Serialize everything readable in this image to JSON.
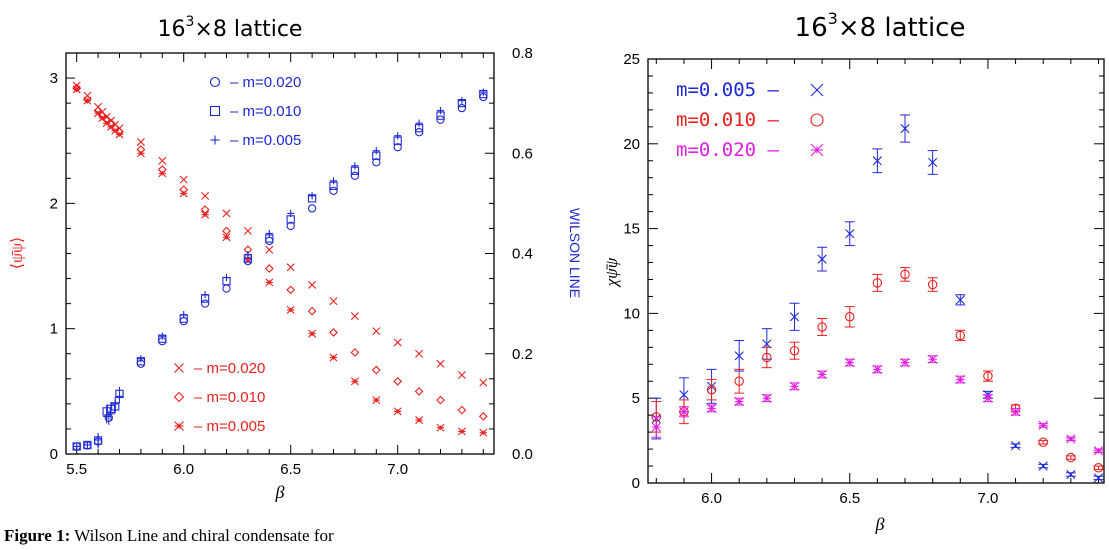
{
  "caption": {
    "label": "Figure 1:",
    "text": "Wilson Line and chiral condensate for"
  },
  "colors": {
    "red": "#e8211f",
    "blue": "#1f2ad4",
    "magenta": "#e020e0"
  },
  "chart_data": [
    {
      "type": "scatter",
      "title_base": "16",
      "title_exp": "3",
      "title_rest": "×8 lattice",
      "xlabel": "β",
      "ylabel_left": "⟨ψ̄ψ⟩",
      "ylabel_right": "WILSON LINE",
      "xlim": [
        5.45,
        7.45
      ],
      "ylim_left": [
        0,
        3.2
      ],
      "ylim_right": [
        0,
        0.8
      ],
      "xticks": [
        "5.5",
        "6.0",
        "6.5",
        "7.0"
      ],
      "yticks_left": [
        "0",
        "1",
        "2",
        "3"
      ],
      "yticks_right": [
        "0.0",
        "0.2",
        "0.4",
        "0.6",
        "0.8"
      ],
      "legend_wilson": [
        {
          "marker": "circle",
          "label": "– m=0.020"
        },
        {
          "marker": "square",
          "label": "– m=0.010"
        },
        {
          "marker": "plus",
          "label": "– m=0.005"
        }
      ],
      "legend_condensate": [
        {
          "marker": "cross",
          "label": "– m=0.020"
        },
        {
          "marker": "diamond",
          "label": "– m=0.010"
        },
        {
          "marker": "burst",
          "label": "– m=0.005"
        }
      ],
      "series": [
        {
          "axis": "left",
          "marker": "cross",
          "color": "red",
          "x": [
            5.5,
            5.55,
            5.6,
            5.62,
            5.64,
            5.66,
            5.68,
            5.7,
            5.8,
            5.9,
            6.0,
            6.1,
            6.2,
            6.3,
            6.4,
            6.5,
            6.6,
            6.7,
            6.8,
            6.9,
            7.0,
            7.1,
            7.2,
            7.3,
            7.4
          ],
          "y": [
            2.94,
            2.86,
            2.77,
            2.73,
            2.69,
            2.66,
            2.63,
            2.6,
            2.49,
            2.34,
            2.19,
            2.06,
            1.92,
            1.78,
            1.63,
            1.49,
            1.35,
            1.22,
            1.1,
            0.98,
            0.89,
            0.8,
            0.72,
            0.63,
            0.57
          ]
        },
        {
          "axis": "left",
          "marker": "diamond",
          "color": "red",
          "x": [
            5.5,
            5.55,
            5.6,
            5.62,
            5.64,
            5.66,
            5.68,
            5.7,
            5.8,
            5.9,
            6.0,
            6.1,
            6.2,
            6.3,
            6.4,
            6.5,
            6.6,
            6.7,
            6.8,
            6.9,
            7.0,
            7.1,
            7.2,
            7.3,
            7.4
          ],
          "y": [
            2.92,
            2.83,
            2.74,
            2.7,
            2.67,
            2.64,
            2.6,
            2.57,
            2.43,
            2.27,
            2.11,
            1.95,
            1.78,
            1.63,
            1.48,
            1.31,
            1.14,
            0.97,
            0.81,
            0.67,
            0.58,
            0.5,
            0.43,
            0.35,
            0.3
          ]
        },
        {
          "axis": "left",
          "marker": "burst",
          "color": "red",
          "x": [
            5.5,
            5.55,
            5.6,
            5.62,
            5.64,
            5.66,
            5.68,
            5.7,
            5.8,
            5.9,
            6.0,
            6.1,
            6.2,
            6.3,
            6.4,
            6.5,
            6.6,
            6.7,
            6.8,
            6.9,
            7.0,
            7.1,
            7.2,
            7.3,
            7.4
          ],
          "y": [
            2.91,
            2.82,
            2.72,
            2.68,
            2.64,
            2.61,
            2.58,
            2.55,
            2.4,
            2.24,
            2.08,
            1.91,
            1.73,
            1.55,
            1.37,
            1.15,
            0.96,
            0.77,
            0.58,
            0.43,
            0.34,
            0.27,
            0.21,
            0.18,
            0.17
          ]
        },
        {
          "axis": "right",
          "marker": "circle",
          "color": "blue",
          "x": [
            5.5,
            5.55,
            5.6,
            5.65,
            5.8,
            5.9,
            6.0,
            6.1,
            6.2,
            6.3,
            6.4,
            6.5,
            6.6,
            6.7,
            6.8,
            6.9,
            7.0,
            7.1,
            7.2,
            7.3,
            7.4
          ],
          "y": [
            0.015,
            0.017,
            0.025,
            0.072,
            0.18,
            0.225,
            0.265,
            0.3,
            0.33,
            0.385,
            0.425,
            0.455,
            0.49,
            0.525,
            0.555,
            0.582,
            0.612,
            0.642,
            0.667,
            0.69,
            0.712
          ]
        },
        {
          "axis": "right",
          "marker": "square",
          "color": "blue",
          "x": [
            5.5,
            5.55,
            5.6,
            5.64,
            5.66,
            5.68,
            5.7,
            5.8,
            5.9,
            6.0,
            6.1,
            6.2,
            6.3,
            6.4,
            6.5,
            6.6,
            6.7,
            6.8,
            6.9,
            7.0,
            7.1,
            7.2,
            7.3,
            7.4
          ],
          "y": [
            0.015,
            0.018,
            0.027,
            0.085,
            0.09,
            0.095,
            0.12,
            0.185,
            0.23,
            0.27,
            0.31,
            0.345,
            0.39,
            0.43,
            0.468,
            0.51,
            0.535,
            0.565,
            0.595,
            0.625,
            0.65,
            0.675,
            0.7,
            0.718
          ]
        },
        {
          "axis": "right",
          "marker": "plus",
          "color": "blue",
          "x": [
            5.5,
            5.55,
            5.6,
            5.64,
            5.66,
            5.68,
            5.7,
            5.8,
            5.9,
            6.0,
            6.1,
            6.2,
            6.3,
            6.4,
            6.5,
            6.6,
            6.7,
            6.8,
            6.9,
            7.0,
            7.1,
            7.2,
            7.3,
            7.4
          ],
          "y": [
            0.015,
            0.018,
            0.028,
            0.075,
            0.08,
            0.1,
            0.115,
            0.19,
            0.235,
            0.278,
            0.318,
            0.352,
            0.398,
            0.44,
            0.48,
            0.515,
            0.545,
            0.575,
            0.605,
            0.635,
            0.66,
            0.685,
            0.705,
            0.722
          ]
        }
      ]
    },
    {
      "type": "scatter",
      "title_base": "16",
      "title_exp": "3",
      "title_rest": "×8 lattice",
      "xlabel": "β",
      "ylabel": "χψ̄ψ",
      "xlim": [
        5.77,
        7.42
      ],
      "ylim": [
        0,
        25
      ],
      "xticks": [
        "6.0",
        "6.5",
        "7.0"
      ],
      "yticks": [
        "0",
        "5",
        "10",
        "15",
        "20",
        "25"
      ],
      "legend": [
        {
          "label": "m=0.005  –",
          "marker": "cross",
          "color": "blue"
        },
        {
          "label": "m=0.010  –",
          "marker": "circle",
          "color": "red"
        },
        {
          "label": "m=0.020  –",
          "marker": "burst",
          "color": "magenta"
        }
      ],
      "series": [
        {
          "marker": "cross",
          "color": "blue",
          "x": [
            5.8,
            5.9,
            6.0,
            6.1,
            6.2,
            6.3,
            6.4,
            6.5,
            6.6,
            6.7,
            6.8,
            6.9,
            7.0,
            7.1,
            7.2,
            7.3,
            7.4
          ],
          "y": [
            3.8,
            5.2,
            5.7,
            7.5,
            8.2,
            9.8,
            13.2,
            14.7,
            19.0,
            20.9,
            18.9,
            10.8,
            5.2,
            2.2,
            1.0,
            0.5,
            0.3
          ],
          "err": [
            1.2,
            1.0,
            1.0,
            0.9,
            0.9,
            0.8,
            0.7,
            0.7,
            0.7,
            0.8,
            0.7,
            0.3,
            0.2,
            0.1,
            0.1,
            0.1,
            0.1
          ]
        },
        {
          "marker": "circle",
          "color": "red",
          "x": [
            5.8,
            5.9,
            6.0,
            6.1,
            6.2,
            6.3,
            6.4,
            6.5,
            6.6,
            6.7,
            6.8,
            6.9,
            7.0,
            7.1,
            7.2,
            7.3,
            7.4
          ],
          "y": [
            3.9,
            4.2,
            5.5,
            6.0,
            7.4,
            7.8,
            9.2,
            9.8,
            11.8,
            12.3,
            11.7,
            8.7,
            6.3,
            4.4,
            2.4,
            1.5,
            0.9
          ],
          "err": [
            0.9,
            0.7,
            0.6,
            0.7,
            0.6,
            0.5,
            0.5,
            0.6,
            0.5,
            0.4,
            0.4,
            0.3,
            0.3,
            0.2,
            0.1,
            0.1,
            0.1
          ]
        },
        {
          "marker": "burst",
          "color": "magenta",
          "x": [
            5.8,
            5.9,
            6.0,
            6.1,
            6.2,
            6.3,
            6.4,
            6.5,
            6.6,
            6.7,
            6.8,
            6.9,
            7.0,
            7.1,
            7.2,
            7.3,
            7.4
          ],
          "y": [
            3.3,
            4.2,
            4.4,
            4.8,
            5.0,
            5.7,
            6.4,
            7.1,
            6.7,
            7.1,
            7.3,
            6.1,
            5.0,
            4.2,
            3.4,
            2.6,
            1.9
          ],
          "err": [
            0.6,
            0.3,
            0.2,
            0.2,
            0.2,
            0.2,
            0.2,
            0.2,
            0.2,
            0.2,
            0.2,
            0.2,
            0.2,
            0.2,
            0.1,
            0.1,
            0.1
          ]
        }
      ]
    }
  ]
}
